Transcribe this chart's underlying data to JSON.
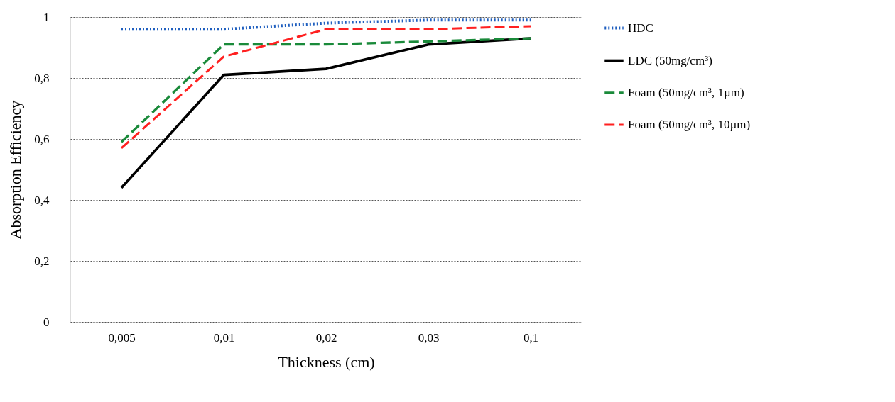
{
  "chart_data": {
    "type": "line",
    "xlabel": "Thickness (cm)",
    "ylabel": "Absorption Efficiency",
    "categories": [
      "0,005",
      "0,01",
      "0,02",
      "0,03",
      "0,1"
    ],
    "series": [
      {
        "name": "HDC",
        "color": "#1f5fbf",
        "line_style": "dotted",
        "values": [
          0.96,
          0.96,
          0.98,
          0.99,
          0.99
        ]
      },
      {
        "name": "LDC (50mg/cm³)",
        "color": "#000000",
        "line_style": "solid",
        "values": [
          0.44,
          0.81,
          0.83,
          0.91,
          0.93
        ]
      },
      {
        "name": "Foam (50mg/cm³, 1µm)",
        "color": "#1a8a3a",
        "line_style": "dashed",
        "values": [
          0.59,
          0.91,
          0.91,
          0.92,
          0.93
        ]
      },
      {
        "name": "Foam (50mg/cm³, 10µm)",
        "color": "#ff2020",
        "line_style": "dashed",
        "values": [
          0.57,
          0.87,
          0.96,
          0.96,
          0.97
        ]
      }
    ],
    "ylim": [
      0,
      1
    ],
    "yticks": [
      0,
      {
        "value": 0.2,
        "label": "0,2"
      },
      {
        "value": 0.4,
        "label": "0,4"
      },
      {
        "value": 0.6,
        "label": "0,6"
      },
      {
        "value": 0.8,
        "label": "0,8"
      },
      1
    ],
    "grid": "y",
    "legend": "right",
    "marker": "none"
  }
}
